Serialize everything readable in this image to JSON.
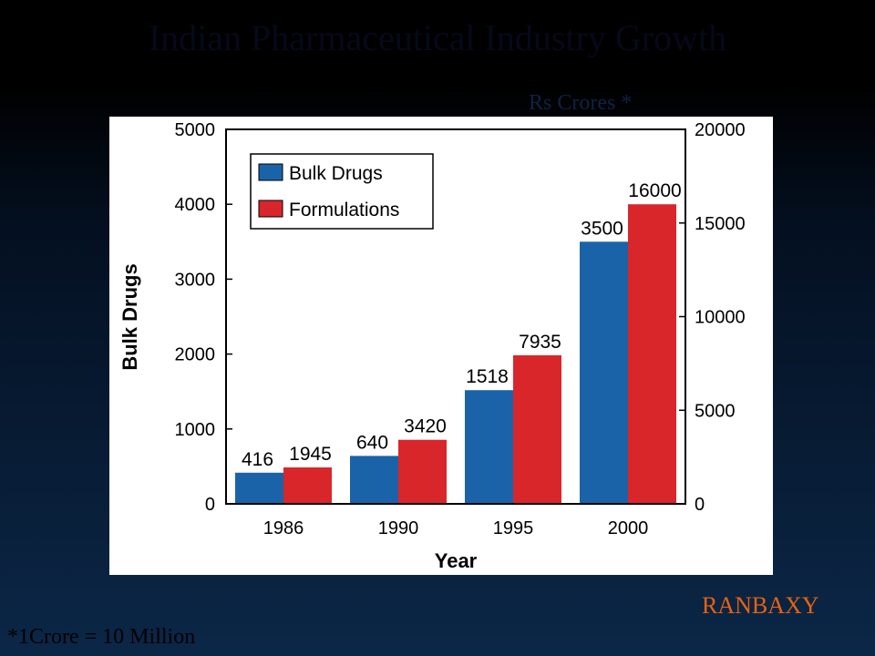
{
  "slide": {
    "title": "Indian Pharmaceutical Industry Growth",
    "unit_label": "Rs Crores *",
    "brand": "RANBAXY",
    "footnote": "*1Crore = 10 Million"
  },
  "colors": {
    "bulk_drugs": "#1a63a8",
    "formulations": "#d9262b",
    "brand": "#e8620f"
  },
  "chart_data": {
    "type": "bar",
    "title": "",
    "xlabel": "Year",
    "ylabel": "Bulk Drugs",
    "y2label": "",
    "categories": [
      "1986",
      "1990",
      "1995",
      "2000"
    ],
    "ylim": [
      0,
      5000
    ],
    "y2lim": [
      0,
      20000
    ],
    "yticks": [
      0,
      1000,
      2000,
      3000,
      4000,
      5000
    ],
    "y2ticks": [
      0,
      5000,
      10000,
      15000,
      20000
    ],
    "grid": false,
    "legend_position": "top-left",
    "series": [
      {
        "name": "Bulk Drugs",
        "axis": "left",
        "values": [
          416,
          640,
          1518,
          3500
        ],
        "labels": [
          "416",
          "640",
          "1518",
          "3500"
        ]
      },
      {
        "name": "Formulations",
        "axis": "right",
        "values": [
          1945,
          3420,
          7935,
          16000
        ],
        "labels": [
          "1945",
          "3420",
          "7935",
          "16000"
        ]
      }
    ]
  }
}
